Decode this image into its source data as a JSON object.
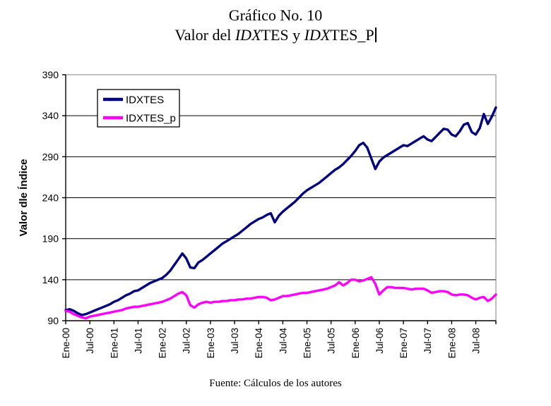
{
  "title": {
    "line1": "Gráfico No. 10",
    "line2_parts": [
      {
        "text": "Valor del ",
        "italic": false
      },
      {
        "text": "IDX",
        "italic": true
      },
      {
        "text": "TES y ",
        "italic": false
      },
      {
        "text": "IDX",
        "italic": true
      },
      {
        "text": "TES_P",
        "italic": false
      }
    ],
    "caret_visible": true
  },
  "footer": "Fuente: Cálculos de los autores",
  "chart_data": {
    "type": "line",
    "title": "Valor del IDXTES y IDXTES_P",
    "ylabel": "Valor dle Índice",
    "xlabel": "",
    "ylim": [
      90,
      390
    ],
    "y_ticks": [
      90,
      140,
      190,
      240,
      290,
      340,
      390
    ],
    "grid": true,
    "legend_position": "top-left",
    "x_unit": "monthly",
    "x_range": [
      "Ene-00",
      "Dic-08"
    ],
    "x_tick_every_months": 6,
    "x_tick_labels": [
      "Ene-00",
      "Jul-00",
      "Ene-01",
      "Jul-01",
      "Ene-02",
      "Jul-02",
      "Ene-03",
      "Jul-03",
      "Ene-04",
      "Jul-04",
      "Ene-05",
      "Jul-05",
      "Ene-06",
      "Jul-06",
      "Ene-07",
      "Jul-07",
      "Ene-08",
      "Jul-08"
    ],
    "colors": {
      "axis": "#000000",
      "grid": "#000000",
      "frame_top_right": "#808080",
      "background": "#ffffff"
    },
    "series": [
      {
        "name": "IDXTES",
        "color": "#000080",
        "values": [
          103,
          104,
          102,
          99,
          97,
          98,
          100,
          102,
          104,
          106,
          108,
          110,
          113,
          115,
          118,
          121,
          123,
          126,
          127,
          130,
          133,
          136,
          138,
          140,
          142,
          146,
          151,
          158,
          165,
          172,
          166,
          155,
          154,
          161,
          164,
          168,
          172,
          176,
          180,
          184,
          187,
          190,
          193,
          196,
          200,
          204,
          208,
          211,
          214,
          216,
          219,
          221,
          210,
          218,
          223,
          227,
          231,
          235,
          240,
          245,
          249,
          252,
          255,
          258,
          262,
          266,
          270,
          274,
          277,
          281,
          286,
          291,
          297,
          304,
          307,
          301,
          288,
          275,
          284,
          289,
          292,
          295,
          298,
          301,
          304,
          303,
          306,
          309,
          312,
          315,
          311,
          309,
          314,
          319,
          324,
          323,
          317,
          315,
          321,
          329,
          331,
          320,
          317,
          325,
          342,
          330,
          339,
          350
        ]
      },
      {
        "name": "IDXTES_p",
        "color": "#FF00FF",
        "values": [
          102,
          101,
          98,
          96,
          94,
          93,
          95,
          96,
          97,
          98,
          99,
          100,
          101,
          102,
          103,
          105,
          106,
          107,
          107,
          108,
          109,
          110,
          111,
          112,
          113,
          115,
          117,
          120,
          123,
          125,
          121,
          109,
          106,
          110,
          112,
          113,
          112,
          113,
          113,
          114,
          114,
          115,
          115,
          116,
          116,
          117,
          117,
          118,
          119,
          119,
          118,
          115,
          116,
          118,
          120,
          120,
          121,
          122,
          123,
          124,
          124,
          125,
          126,
          127,
          128,
          129,
          131,
          133,
          137,
          133,
          136,
          140,
          140,
          138,
          139,
          141,
          143,
          135,
          122,
          127,
          131,
          131,
          130,
          130,
          130,
          129,
          128,
          129,
          129,
          129,
          127,
          124,
          125,
          126,
          126,
          125,
          122,
          121,
          122,
          122,
          121,
          118,
          116,
          118,
          119,
          114,
          117,
          122
        ]
      }
    ]
  }
}
